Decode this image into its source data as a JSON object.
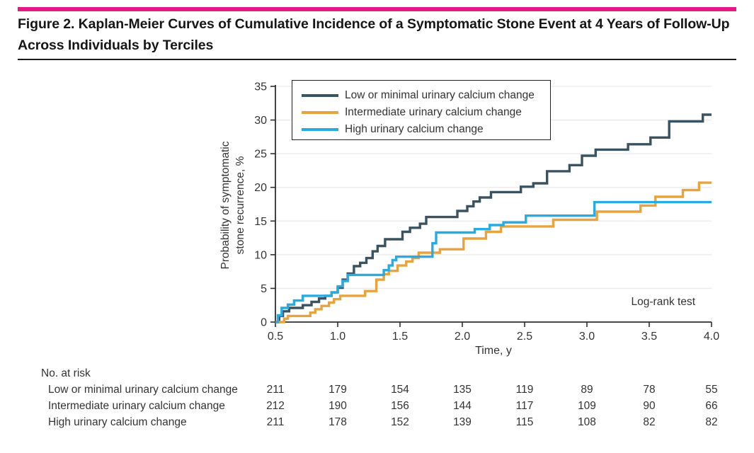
{
  "figure": {
    "title": "Figure 2. Kaplan-Meier Curves of Cumulative Incidence of a Symptomatic Stone Event at 4 Years of Follow-Up Across Individuals by Terciles",
    "accent_color": "#e51884"
  },
  "chart_data": {
    "type": "line",
    "subtype": "kaplan-meier-step",
    "xlabel": "Time, y",
    "ylabel": "Probability of symptomatic stone recurrence, %",
    "xlim": [
      0.5,
      4.0
    ],
    "ylim": [
      0,
      35
    ],
    "x_ticks": [
      "0.5",
      "1.0",
      "1.5",
      "2.0",
      "2.5",
      "3.0",
      "3.5",
      "4.0"
    ],
    "y_ticks": [
      0,
      5,
      10,
      15,
      20,
      25,
      30,
      35
    ],
    "grid": "horizontal",
    "gridline_color": "#e9e9e9",
    "axis_color": "#2e2e2e",
    "legend_position": "top-left-box",
    "annotation": "Log-rank test",
    "series": [
      {
        "name": "Low or minimal urinary calcium change",
        "color": "#3a5361",
        "points": [
          [
            0.5,
            0
          ],
          [
            0.53,
            0.9
          ],
          [
            0.56,
            1.6
          ],
          [
            0.61,
            2.1
          ],
          [
            0.72,
            2.5
          ],
          [
            0.79,
            3.0
          ],
          [
            0.85,
            3.5
          ],
          [
            0.9,
            3.9
          ],
          [
            0.95,
            4.4
          ],
          [
            1.0,
            5.1
          ],
          [
            1.04,
            6.3
          ],
          [
            1.08,
            7.2
          ],
          [
            1.13,
            8.3
          ],
          [
            1.18,
            8.8
          ],
          [
            1.23,
            9.5
          ],
          [
            1.28,
            10.5
          ],
          [
            1.32,
            11.3
          ],
          [
            1.38,
            12.3
          ],
          [
            1.52,
            13.4
          ],
          [
            1.58,
            14.0
          ],
          [
            1.66,
            14.6
          ],
          [
            1.71,
            15.6
          ],
          [
            1.96,
            16.5
          ],
          [
            2.04,
            17.2
          ],
          [
            2.09,
            17.9
          ],
          [
            2.14,
            18.5
          ],
          [
            2.23,
            19.3
          ],
          [
            2.47,
            20.1
          ],
          [
            2.57,
            20.6
          ],
          [
            2.68,
            22.4
          ],
          [
            2.86,
            23.3
          ],
          [
            2.96,
            24.7
          ],
          [
            3.07,
            25.6
          ],
          [
            3.33,
            26.4
          ],
          [
            3.51,
            27.4
          ],
          [
            3.66,
            29.8
          ],
          [
            3.93,
            30.8
          ],
          [
            4.0,
            30.8
          ]
        ]
      },
      {
        "name": "Intermediate urinary calcium change",
        "color": "#e8a33d",
        "points": [
          [
            0.5,
            0
          ],
          [
            0.57,
            0.5
          ],
          [
            0.6,
            0.9
          ],
          [
            0.78,
            1.4
          ],
          [
            0.82,
            1.9
          ],
          [
            0.87,
            2.4
          ],
          [
            0.93,
            2.9
          ],
          [
            0.97,
            3.4
          ],
          [
            1.02,
            3.9
          ],
          [
            1.22,
            4.6
          ],
          [
            1.31,
            6.3
          ],
          [
            1.37,
            7.1
          ],
          [
            1.41,
            7.6
          ],
          [
            1.48,
            8.4
          ],
          [
            1.55,
            9.0
          ],
          [
            1.6,
            9.5
          ],
          [
            1.65,
            10.3
          ],
          [
            1.82,
            10.8
          ],
          [
            2.01,
            12.4
          ],
          [
            2.19,
            13.4
          ],
          [
            2.31,
            14.2
          ],
          [
            2.73,
            15.2
          ],
          [
            3.08,
            16.4
          ],
          [
            3.43,
            17.3
          ],
          [
            3.55,
            18.6
          ],
          [
            3.77,
            19.6
          ],
          [
            3.9,
            20.7
          ],
          [
            4.0,
            20.7
          ]
        ]
      },
      {
        "name": "High urinary calcium change",
        "color": "#29abe2",
        "points": [
          [
            0.5,
            0
          ],
          [
            0.52,
            1.0
          ],
          [
            0.55,
            2.1
          ],
          [
            0.6,
            2.6
          ],
          [
            0.65,
            3.2
          ],
          [
            0.72,
            3.9
          ],
          [
            0.95,
            4.4
          ],
          [
            1.0,
            5.3
          ],
          [
            1.04,
            6.1
          ],
          [
            1.08,
            7.0
          ],
          [
            1.37,
            7.7
          ],
          [
            1.41,
            8.4
          ],
          [
            1.44,
            9.2
          ],
          [
            1.47,
            9.7
          ],
          [
            1.76,
            11.7
          ],
          [
            1.79,
            13.3
          ],
          [
            2.1,
            13.8
          ],
          [
            2.22,
            14.4
          ],
          [
            2.33,
            14.8
          ],
          [
            2.51,
            15.8
          ],
          [
            3.06,
            17.8
          ],
          [
            4.0,
            17.8
          ]
        ]
      }
    ]
  },
  "risk_table": {
    "heading": "No. at risk",
    "time_points": [
      0.5,
      1.0,
      1.5,
      2.0,
      2.5,
      3.0,
      3.5,
      4.0
    ],
    "rows": [
      {
        "label": "Low or minimal urinary calcium change",
        "values": [
          211,
          179,
          154,
          135,
          119,
          89,
          78,
          55
        ]
      },
      {
        "label": "Intermediate urinary calcium change",
        "values": [
          212,
          190,
          156,
          144,
          117,
          109,
          90,
          66
        ]
      },
      {
        "label": "High urinary calcium change",
        "values": [
          211,
          178,
          152,
          139,
          115,
          108,
          82,
          82
        ]
      }
    ]
  }
}
